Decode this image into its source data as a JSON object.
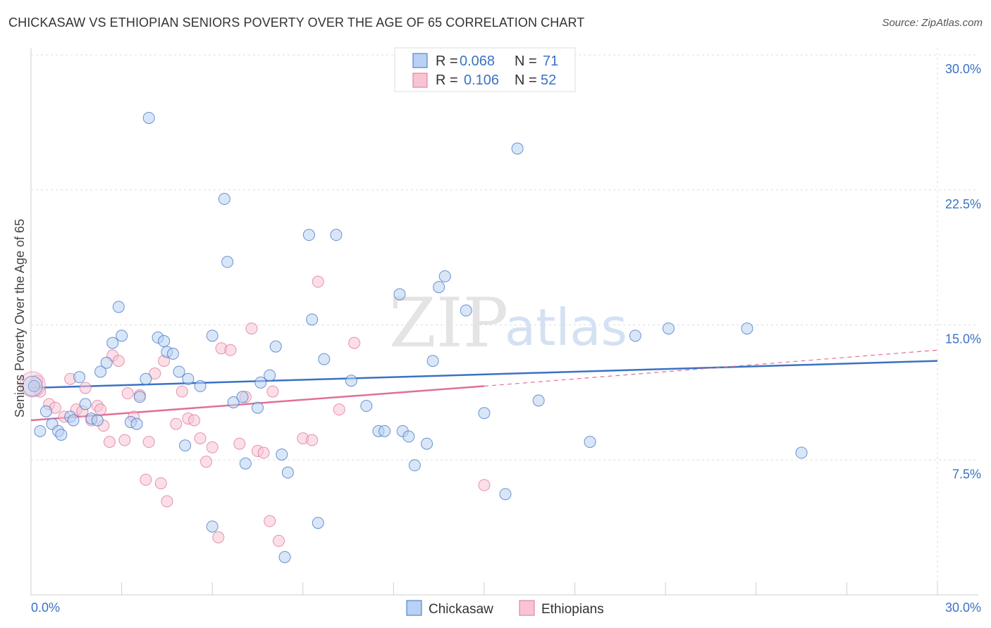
{
  "title": "CHICKASAW VS ETHIOPIAN SENIORS POVERTY OVER THE AGE OF 65 CORRELATION CHART",
  "source": "Source: ZipAtlas.com",
  "watermark": {
    "zip": "ZIP",
    "atlas": "atlas"
  },
  "colors": {
    "blue": "#3a72c4",
    "blue_fill": "#b9d1f2",
    "pink": "#e07098",
    "pink_fill": "#f8c4d4"
  },
  "legend": {
    "rows": [
      {
        "r_label": "R =",
        "r_value": "0.068",
        "n_label": "N =",
        "n_value": "71"
      },
      {
        "r_label": "R =",
        "r_value": "0.106",
        "n_label": "N =",
        "n_value": "52"
      }
    ]
  },
  "bottom_legend": [
    "Chickasaw",
    "Ethiopians"
  ],
  "chart_data": {
    "type": "scatter",
    "ylabel": "Seniors Poverty Over the Age of 65",
    "xlim": [
      0,
      30
    ],
    "ylim": [
      0,
      30
    ],
    "x_ticks": [
      "0.0%",
      "30.0%"
    ],
    "y_ticks": [
      {
        "value": 30,
        "label": "30.0%"
      },
      {
        "value": 22.5,
        "label": "22.5%"
      },
      {
        "value": 15,
        "label": "15.0%"
      },
      {
        "value": 7.5,
        "label": "7.5%"
      }
    ],
    "grid": true,
    "series": [
      {
        "name": "Chickasaw",
        "trend": {
          "x0": 0,
          "y0": 11.5,
          "x1": 30,
          "y1": 13.0
        },
        "points": [
          [
            0.3,
            9.1
          ],
          [
            0.5,
            10.2
          ],
          [
            0.7,
            9.5
          ],
          [
            0.9,
            9.1
          ],
          [
            1.0,
            8.9
          ],
          [
            1.3,
            9.9
          ],
          [
            1.4,
            9.7
          ],
          [
            1.6,
            12.1
          ],
          [
            1.8,
            10.6
          ],
          [
            2.0,
            9.8
          ],
          [
            2.2,
            9.7
          ],
          [
            2.3,
            12.4
          ],
          [
            2.5,
            12.9
          ],
          [
            2.7,
            14.0
          ],
          [
            2.9,
            16.0
          ],
          [
            3.0,
            14.4
          ],
          [
            3.3,
            9.6
          ],
          [
            3.5,
            9.5
          ],
          [
            3.6,
            11.0
          ],
          [
            3.8,
            12.0
          ],
          [
            3.9,
            26.5
          ],
          [
            4.2,
            14.3
          ],
          [
            4.4,
            14.1
          ],
          [
            4.5,
            13.5
          ],
          [
            4.7,
            13.4
          ],
          [
            4.9,
            12.4
          ],
          [
            5.1,
            8.3
          ],
          [
            5.2,
            12.0
          ],
          [
            5.6,
            11.6
          ],
          [
            6.0,
            14.4
          ],
          [
            6.0,
            3.8
          ],
          [
            6.4,
            22.0
          ],
          [
            6.5,
            18.5
          ],
          [
            6.7,
            10.7
          ],
          [
            7.0,
            11.0
          ],
          [
            7.1,
            7.3
          ],
          [
            7.5,
            10.4
          ],
          [
            7.6,
            11.8
          ],
          [
            7.9,
            12.2
          ],
          [
            8.1,
            13.8
          ],
          [
            8.3,
            7.8
          ],
          [
            8.4,
            2.1
          ],
          [
            8.5,
            6.8
          ],
          [
            9.2,
            20.0
          ],
          [
            9.3,
            15.3
          ],
          [
            9.5,
            4.0
          ],
          [
            9.7,
            13.1
          ],
          [
            10.1,
            20.0
          ],
          [
            10.6,
            11.9
          ],
          [
            11.1,
            10.5
          ],
          [
            11.5,
            9.1
          ],
          [
            11.7,
            9.1
          ],
          [
            12.2,
            16.7
          ],
          [
            12.3,
            9.1
          ],
          [
            12.5,
            8.8
          ],
          [
            12.7,
            7.2
          ],
          [
            13.1,
            8.4
          ],
          [
            13.3,
            13.0
          ],
          [
            13.5,
            17.1
          ],
          [
            13.7,
            17.7
          ],
          [
            14.4,
            15.8
          ],
          [
            15.0,
            10.1
          ],
          [
            15.7,
            5.6
          ],
          [
            16.1,
            24.8
          ],
          [
            16.8,
            10.8
          ],
          [
            18.5,
            8.5
          ],
          [
            20.0,
            14.4
          ],
          [
            21.1,
            14.8
          ],
          [
            23.7,
            14.8
          ],
          [
            25.5,
            7.9
          ],
          [
            0.1,
            11.6
          ]
        ]
      },
      {
        "name": "Ethiopians",
        "trend": {
          "x0": 0,
          "y0": 9.7,
          "x1": 15,
          "y1": 11.6,
          "dash_x1": 30,
          "dash_y1": 13.6
        },
        "points": [
          [
            0.1,
            11.6
          ],
          [
            0.6,
            10.6
          ],
          [
            0.8,
            10.4
          ],
          [
            1.1,
            9.9
          ],
          [
            1.3,
            12.0
          ],
          [
            1.5,
            10.3
          ],
          [
            1.7,
            10.2
          ],
          [
            1.8,
            11.5
          ],
          [
            2.0,
            9.7
          ],
          [
            2.2,
            10.5
          ],
          [
            2.3,
            10.3
          ],
          [
            2.4,
            9.4
          ],
          [
            2.6,
            8.5
          ],
          [
            2.7,
            13.3
          ],
          [
            2.9,
            13.0
          ],
          [
            3.1,
            8.6
          ],
          [
            3.2,
            11.2
          ],
          [
            3.4,
            9.9
          ],
          [
            3.6,
            11.1
          ],
          [
            3.8,
            6.4
          ],
          [
            3.9,
            8.5
          ],
          [
            4.1,
            12.3
          ],
          [
            4.3,
            6.2
          ],
          [
            4.4,
            13.0
          ],
          [
            4.5,
            5.2
          ],
          [
            4.8,
            9.5
          ],
          [
            5.0,
            11.3
          ],
          [
            5.2,
            9.8
          ],
          [
            5.4,
            9.7
          ],
          [
            5.6,
            8.7
          ],
          [
            5.8,
            7.4
          ],
          [
            6.0,
            8.2
          ],
          [
            6.2,
            3.2
          ],
          [
            6.3,
            13.7
          ],
          [
            6.6,
            13.6
          ],
          [
            6.9,
            8.4
          ],
          [
            7.1,
            11.0
          ],
          [
            7.3,
            14.8
          ],
          [
            7.5,
            8.0
          ],
          [
            7.7,
            7.9
          ],
          [
            7.9,
            4.1
          ],
          [
            8.0,
            11.3
          ],
          [
            8.2,
            3.0
          ],
          [
            9.0,
            8.7
          ],
          [
            9.3,
            8.6
          ],
          [
            9.5,
            17.4
          ],
          [
            10.2,
            10.3
          ],
          [
            10.7,
            14.0
          ],
          [
            12.5,
            29.1
          ],
          [
            15.0,
            6.1
          ],
          [
            0.3,
            11.3
          ],
          [
            0.2,
            11.9
          ]
        ]
      }
    ]
  }
}
